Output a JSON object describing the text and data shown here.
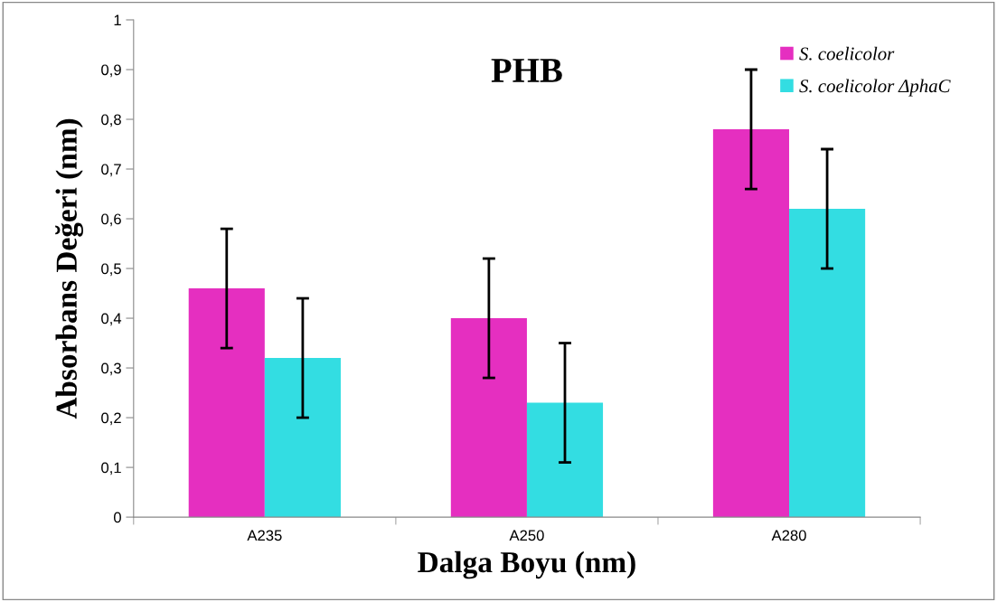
{
  "chart_data": {
    "type": "bar",
    "title": "PHB",
    "xlabel": "Dalga Boyu (nm)",
    "ylabel": "Absorbans Değeri (nm)",
    "categories": [
      "A235",
      "A250",
      "A280"
    ],
    "series": [
      {
        "name": "S. coelicolor",
        "color": "#e52fc0",
        "values": [
          0.46,
          0.4,
          0.78
        ],
        "errors": [
          0.12,
          0.12,
          0.12
        ]
      },
      {
        "name": "S. coelicolor ΔphaC",
        "color": "#33dde2",
        "values": [
          0.32,
          0.23,
          0.62
        ],
        "errors": [
          0.12,
          0.12,
          0.12
        ]
      }
    ],
    "ylim": [
      0,
      1
    ],
    "yticks": [
      0,
      {
        "value": 0.1,
        "label": "0,1"
      },
      {
        "value": 0.2,
        "label": "0,2"
      },
      {
        "value": 0.3,
        "label": "0,3"
      },
      {
        "value": 0.4,
        "label": "0,4"
      },
      {
        "value": 0.5,
        "label": "0,5"
      },
      {
        "value": 0.6,
        "label": "0,6"
      },
      {
        "value": 0.7,
        "label": "0,7"
      },
      {
        "value": 0.8,
        "label": "0,8"
      },
      {
        "value": 0.9,
        "label": "0,9"
      },
      1
    ],
    "grid": false,
    "legend": "top right"
  }
}
